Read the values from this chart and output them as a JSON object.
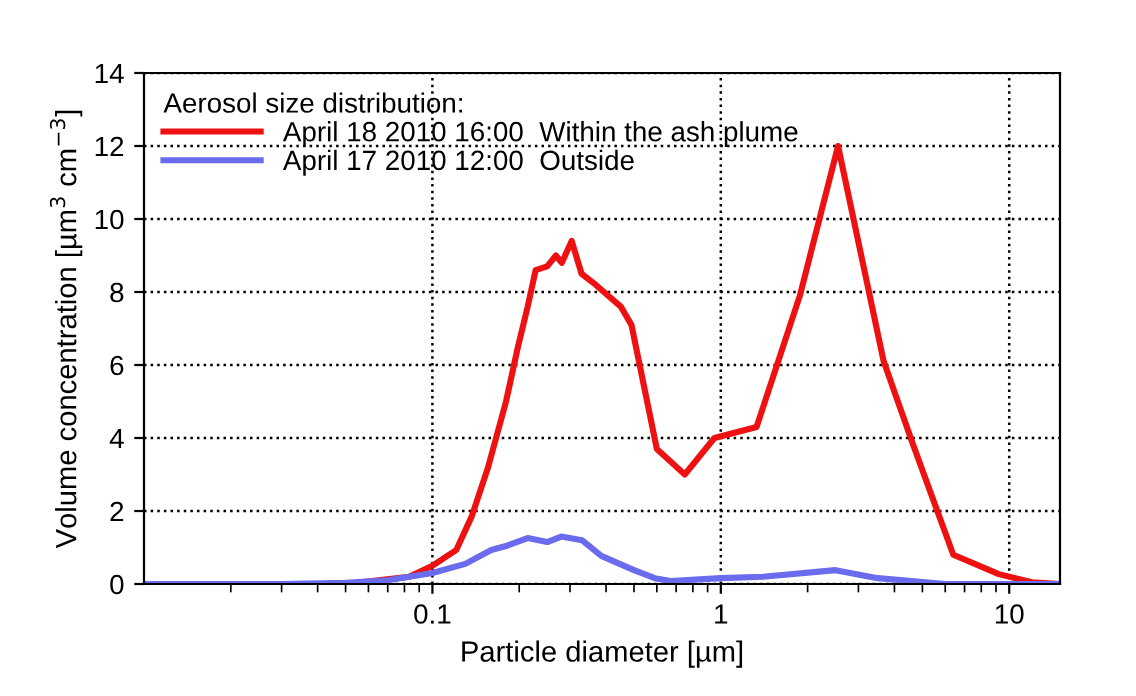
{
  "chart_data": {
    "type": "line",
    "xlabel": "Particle diameter [µm]",
    "ylabel": "Volume concentration [µm$^{3}$ cm$^{−3}$]",
    "legend_title": "Aerosol size distribution:",
    "log": "x",
    "xlim": [
      0.01,
      15
    ],
    "xticks": [
      0.1,
      1,
      10
    ],
    "ylim": [
      0,
      14
    ],
    "yticks": [
      0,
      2,
      4,
      6,
      8,
      10,
      12,
      14
    ],
    "grid": true,
    "legend": "top left",
    "marker": "none",
    "line_style": "solid",
    "series": [
      {
        "name": "April 18 2010 16:00  Within the ash plume",
        "color": "#ee1111",
        "x": [
          0.01,
          0.05,
          0.083,
          0.1,
          0.121,
          0.137,
          0.156,
          0.18,
          0.198,
          0.214,
          0.228,
          0.25,
          0.268,
          0.281,
          0.304,
          0.329,
          0.368,
          0.45,
          0.49,
          0.6,
          0.75,
          0.95,
          1.33,
          1.88,
          2.55,
          3.67,
          4.65,
          6.4,
          9.2,
          12,
          15
        ],
        "values": [
          0,
          0,
          0.2,
          0.5,
          0.93,
          1.86,
          3.2,
          5.0,
          6.5,
          7.6,
          8.6,
          8.7,
          9.0,
          8.8,
          9.4,
          8.5,
          8.2,
          7.6,
          7.1,
          3.7,
          3.0,
          4.0,
          4.3,
          7.9,
          12.0,
          6.1,
          3.8,
          0.8,
          0.27,
          0.05,
          0
        ]
      },
      {
        "name": "April 17 2010 12:00  Outside",
        "color": "#6b6bee",
        "x": [
          0.01,
          0.03,
          0.05,
          0.07,
          0.1,
          0.13,
          0.16,
          0.18,
          0.214,
          0.25,
          0.28,
          0.33,
          0.385,
          0.5,
          0.59,
          0.67,
          1,
          1.4,
          2.5,
          3.5,
          6,
          15
        ],
        "values": [
          0,
          0,
          0.03,
          0.1,
          0.3,
          0.55,
          0.93,
          1.04,
          1.26,
          1.15,
          1.3,
          1.2,
          0.77,
          0.38,
          0.16,
          0.08,
          0.16,
          0.2,
          0.38,
          0.16,
          0,
          0
        ]
      }
    ]
  }
}
